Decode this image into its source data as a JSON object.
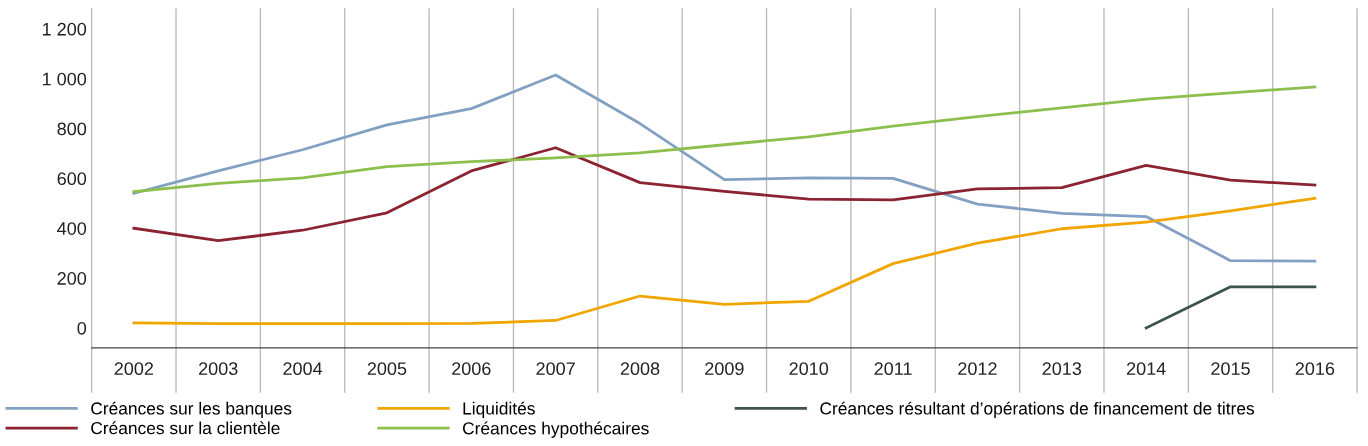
{
  "chart_data": {
    "type": "line",
    "categories": [
      "2002",
      "2003",
      "2004",
      "2005",
      "2006",
      "2007",
      "2008",
      "2009",
      "2010",
      "2011",
      "2012",
      "2013",
      "2014",
      "2015",
      "2016"
    ],
    "series": [
      {
        "name": "Créances sur les banques",
        "color": "#82a1c2",
        "values": [
          540,
          630,
          715,
          815,
          880,
          1015,
          820,
          595,
          602,
          600,
          497,
          460,
          447,
          270,
          268
        ]
      },
      {
        "name": "Créances sur la clientèle",
        "color": "#8b2332",
        "values": [
          400,
          350,
          392,
          462,
          630,
          723,
          583,
          548,
          517,
          514,
          558,
          563,
          652,
          593,
          573
        ]
      },
      {
        "name": "Liquidités",
        "color": "#f0a500",
        "values": [
          20,
          17,
          17,
          17,
          18,
          30,
          128,
          95,
          107,
          258,
          340,
          398,
          425,
          470,
          520
        ]
      },
      {
        "name": "Créances hypothécaires",
        "color": "#8cbf4e",
        "values": [
          547,
          580,
          602,
          647,
          667,
          682,
          702,
          735,
          767,
          810,
          848,
          883,
          918,
          943,
          967
        ]
      },
      {
        "name": "Créances résultant d’opérations de financement de titres",
        "color": "#3e5349",
        "values": [
          null,
          null,
          null,
          null,
          null,
          null,
          null,
          null,
          null,
          null,
          null,
          null,
          0,
          165,
          165
        ]
      }
    ],
    "ylim": [
      -80,
      1280
    ],
    "yticks": [
      {
        "value": 0,
        "label": "0"
      },
      {
        "value": 200,
        "label": "200"
      },
      {
        "value": 400,
        "label": "400"
      },
      {
        "value": 600,
        "label": "600"
      },
      {
        "value": 800,
        "label": "800"
      },
      {
        "value": 1000,
        "label": "1 000"
      },
      {
        "value": 1200,
        "label": "1 200"
      }
    ],
    "grid": "x",
    "legend": "bottom",
    "marker": "none",
    "line_style": "solid"
  }
}
